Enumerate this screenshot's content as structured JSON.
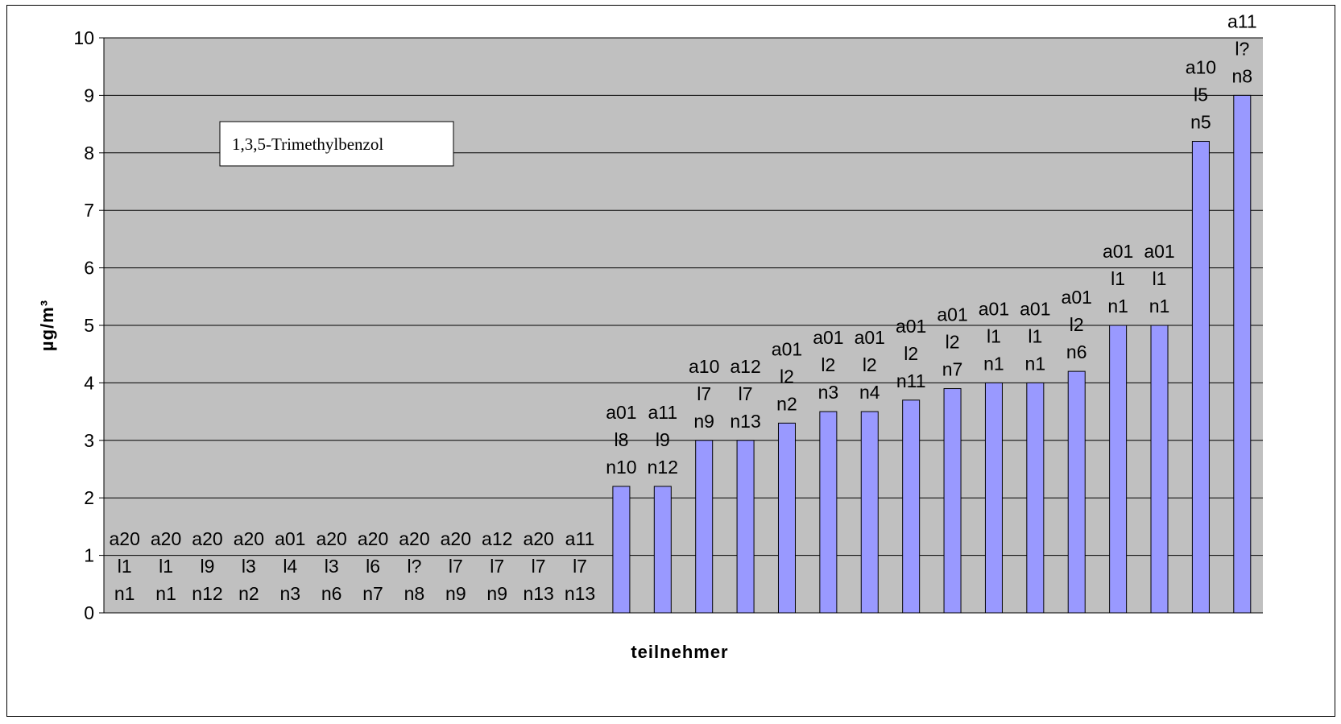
{
  "chart_data": {
    "type": "bar",
    "annotation": "1,3,5-Trimethylbenzol",
    "xlabel": "teilnehmer",
    "ylabel": "µg/m³",
    "ylim": [
      0,
      10
    ],
    "yticks": [
      "0",
      "1",
      "2",
      "3",
      "4",
      "5",
      "6",
      "7",
      "8",
      "9",
      "10"
    ],
    "grid": true,
    "colors": {
      "plot_background": "#c0c0c0",
      "bar_fill": "#9999ff",
      "bar_stroke": "#000000",
      "gridline": "#000000"
    },
    "categories": [
      [
        "a20",
        "l1",
        "n1"
      ],
      [
        "a20",
        "l1",
        "n1"
      ],
      [
        "a20",
        "l9",
        "n12"
      ],
      [
        "a20",
        "l3",
        "n2"
      ],
      [
        "a01",
        "l4",
        "n3"
      ],
      [
        "a20",
        "l3",
        "n6"
      ],
      [
        "a20",
        "l6",
        "n7"
      ],
      [
        "a20",
        "l?",
        "n8"
      ],
      [
        "a20",
        "l7",
        "n9"
      ],
      [
        "a12",
        "l7",
        "n9"
      ],
      [
        "a20",
        "l7",
        "n13"
      ],
      [
        "a11",
        "l7",
        "n13"
      ],
      [
        "a01",
        "l8",
        "n10"
      ],
      [
        "a11",
        "l9",
        "n12"
      ],
      [
        "a10",
        "l7",
        "n9"
      ],
      [
        "a12",
        "l7",
        "n13"
      ],
      [
        "a01",
        "l2",
        "n2"
      ],
      [
        "a01",
        "l2",
        "n3"
      ],
      [
        "a01",
        "l2",
        "n4"
      ],
      [
        "a01",
        "l2",
        "n11"
      ],
      [
        "a01",
        "l2",
        "n7"
      ],
      [
        "a01",
        "l1",
        "n1"
      ],
      [
        "a01",
        "l1",
        "n1"
      ],
      [
        "a01",
        "l2",
        "n6"
      ],
      [
        "a01",
        "l1",
        "n1"
      ],
      [
        "a01",
        "l1",
        "n1"
      ],
      [
        "a10",
        "l5",
        "n5"
      ],
      [
        "a11",
        "l?",
        "n8"
      ]
    ],
    "values": [
      0,
      0,
      0,
      0,
      0,
      0,
      0,
      0,
      0,
      0,
      0,
      0,
      2.2,
      2.2,
      3.0,
      3.0,
      3.3,
      3.5,
      3.5,
      3.7,
      3.9,
      4.0,
      4.0,
      4.2,
      5.0,
      5.0,
      8.2,
      9.0
    ]
  }
}
